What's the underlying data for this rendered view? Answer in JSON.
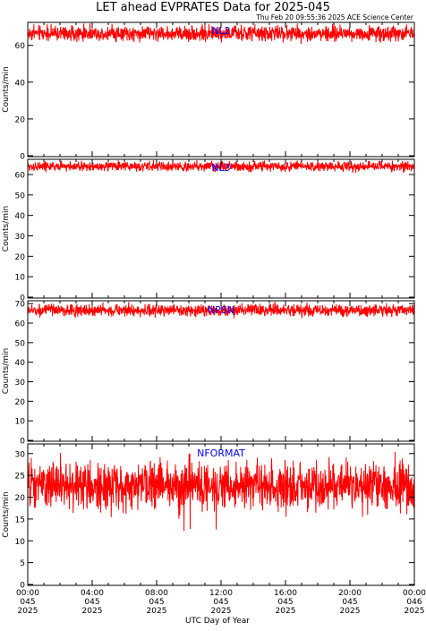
{
  "title": "LET ahead EVPRATES Data for 2025-045",
  "timestamp": "Thu Feb 20 09:55:36 2025 ACE Science Center",
  "xlabel": "UTC Day of Year",
  "colors": {
    "trace": "#ff0000",
    "panel_label": "#0000ff",
    "axis": "#000000"
  },
  "x_ticks": [
    {
      "time": "00:00",
      "doy": "045",
      "year": "2025"
    },
    {
      "time": "04:00",
      "doy": "045",
      "year": "2025"
    },
    {
      "time": "08:00",
      "doy": "045",
      "year": "2025"
    },
    {
      "time": "12:00",
      "doy": "045",
      "year": "2025"
    },
    {
      "time": "16:00",
      "doy": "045",
      "year": "2025"
    },
    {
      "time": "20:00",
      "doy": "045",
      "year": "2025"
    },
    {
      "time": "00:00",
      "doy": "046",
      "year": "2025"
    }
  ],
  "chart_data": [
    {
      "type": "line",
      "name": "NL2",
      "ylabel": "Counts/min",
      "ylim": [
        0,
        72
      ],
      "yticks": [
        0,
        20,
        40,
        60
      ],
      "x_range_hours": [
        0,
        24
      ],
      "samples_per_hour": 60,
      "mean": 66.5,
      "typical_min": 63,
      "typical_max": 70,
      "outlier_max": 72,
      "outlier_min": 62
    },
    {
      "type": "line",
      "name": "NL3",
      "ylabel": "Counts/min",
      "ylim": [
        0,
        67
      ],
      "yticks": [
        0,
        10,
        20,
        30,
        40,
        50,
        60
      ],
      "x_range_hours": [
        0,
        24
      ],
      "samples_per_hour": 60,
      "mean": 64,
      "typical_min": 62,
      "typical_max": 66,
      "outlier_max": 67,
      "outlier_min": 61
    },
    {
      "type": "line",
      "name": "NPSN",
      "ylabel": "Counts/min",
      "ylim": [
        0,
        71
      ],
      "yticks": [
        0,
        10,
        20,
        30,
        40,
        50,
        60,
        70
      ],
      "x_range_hours": [
        0,
        24
      ],
      "samples_per_hour": 60,
      "mean": 66.5,
      "typical_min": 64,
      "typical_max": 69,
      "outlier_max": 71,
      "outlier_min": 63
    },
    {
      "type": "line",
      "name": "NFORMAT",
      "ylabel": "Counts/min",
      "ylim": [
        0,
        32
      ],
      "yticks": [
        0,
        5,
        10,
        15,
        20,
        25,
        30
      ],
      "x_range_hours": [
        0,
        24
      ],
      "samples_per_hour": 60,
      "mean": 22.5,
      "typical_min": 18,
      "typical_max": 27,
      "outlier_max": 31,
      "outlier_min": 12
    }
  ]
}
